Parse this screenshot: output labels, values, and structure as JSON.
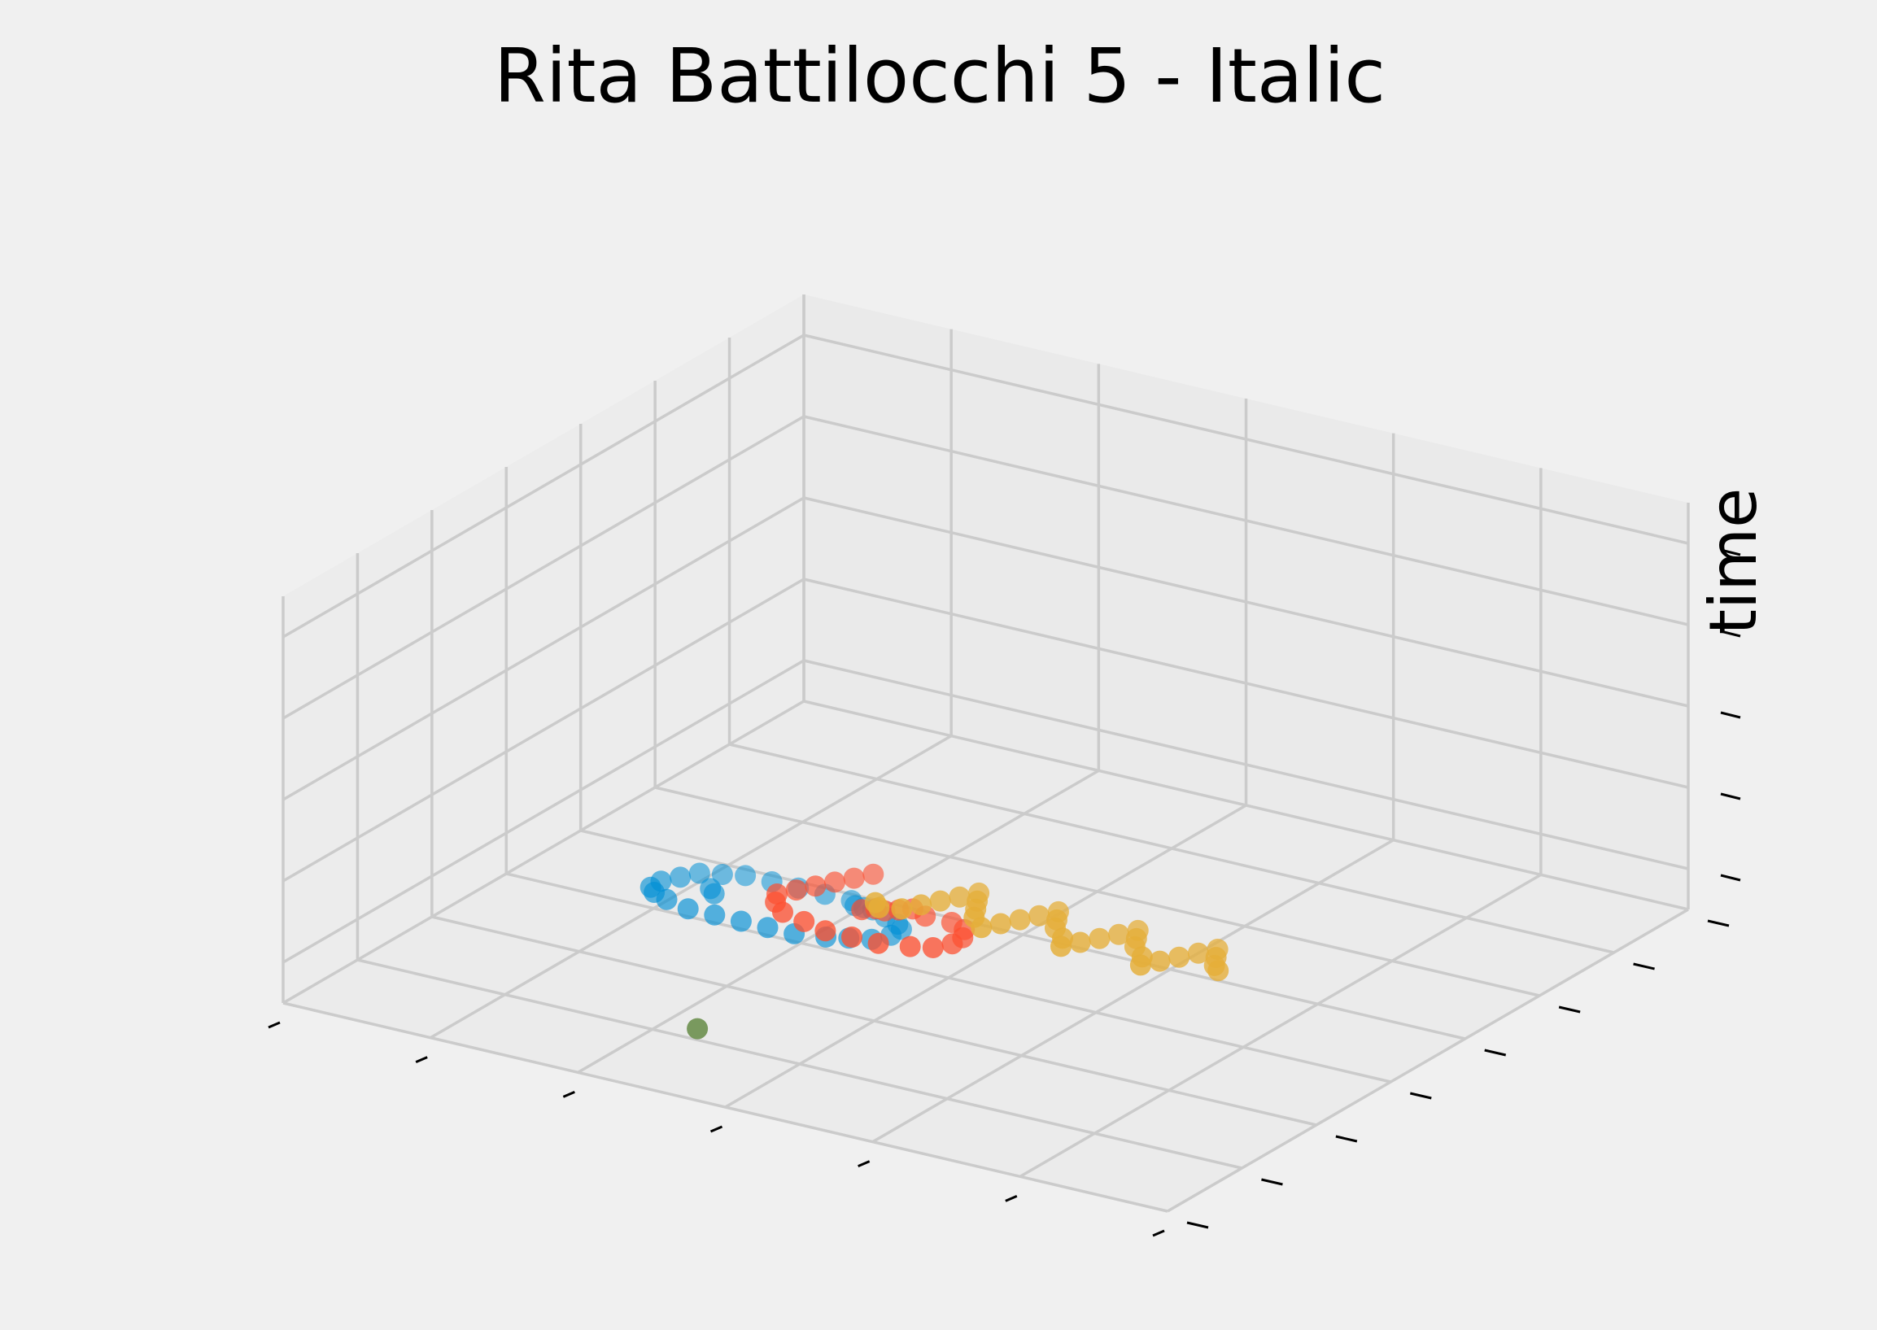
{
  "chart_data": {
    "type": "scatter",
    "title": "Rita Battilocchi 5 - Italic",
    "xlabel": "",
    "ylabel": "",
    "zlabel": "time",
    "projection": "3d",
    "grid": true,
    "legend": "none",
    "background_color": "#f0f0f0",
    "colors": {
      "stroke_1": "#008fd5",
      "stroke_2": "#fc4f30",
      "stroke_3": "#e5ae38",
      "stroke_4": "#6d904f"
    },
    "series": [
      {
        "color": "#008fd5",
        "points": [
          [
            0.18,
            0.4,
            0.08
          ],
          [
            0.18,
            0.42,
            0.08
          ],
          [
            0.19,
            0.44,
            0.08
          ],
          [
            0.2,
            0.46,
            0.08
          ],
          [
            0.22,
            0.47,
            0.08
          ],
          [
            0.24,
            0.48,
            0.08
          ],
          [
            0.27,
            0.48,
            0.08
          ],
          [
            0.3,
            0.48,
            0.08
          ],
          [
            0.33,
            0.48,
            0.08
          ],
          [
            0.36,
            0.48,
            0.08
          ],
          [
            0.39,
            0.47,
            0.08
          ],
          [
            0.41,
            0.46,
            0.08
          ],
          [
            0.43,
            0.45,
            0.08
          ],
          [
            0.44,
            0.44,
            0.08
          ],
          [
            0.44,
            0.42,
            0.08
          ],
          [
            0.43,
            0.4,
            0.08
          ],
          [
            0.41,
            0.39,
            0.08
          ],
          [
            0.39,
            0.38,
            0.08
          ],
          [
            0.36,
            0.37,
            0.08
          ],
          [
            0.33,
            0.37,
            0.08
          ],
          [
            0.3,
            0.37,
            0.08
          ],
          [
            0.27,
            0.37,
            0.08
          ],
          [
            0.24,
            0.37,
            0.08
          ],
          [
            0.21,
            0.38,
            0.08
          ],
          [
            0.19,
            0.39,
            0.08
          ],
          [
            0.23,
            0.43,
            0.08
          ],
          [
            0.24,
            0.42,
            0.08
          ],
          [
            0.37,
            0.47,
            0.08
          ],
          [
            0.38,
            0.47,
            0.08
          ]
        ]
      },
      {
        "color": "#fc4f30",
        "points": [
          [
            0.42,
            0.42,
            0.22
          ],
          [
            0.41,
            0.4,
            0.22
          ],
          [
            0.4,
            0.38,
            0.22
          ],
          [
            0.39,
            0.36,
            0.22
          ],
          [
            0.38,
            0.34,
            0.22
          ],
          [
            0.37,
            0.32,
            0.22
          ],
          [
            0.38,
            0.3,
            0.22
          ],
          [
            0.4,
            0.28,
            0.22
          ],
          [
            0.43,
            0.27,
            0.22
          ],
          [
            0.46,
            0.26,
            0.22
          ],
          [
            0.49,
            0.26,
            0.22
          ],
          [
            0.52,
            0.26,
            0.22
          ],
          [
            0.55,
            0.27,
            0.22
          ],
          [
            0.57,
            0.28,
            0.22
          ],
          [
            0.58,
            0.3,
            0.22
          ],
          [
            0.58,
            0.32,
            0.22
          ],
          [
            0.57,
            0.34,
            0.22
          ],
          [
            0.55,
            0.35,
            0.22
          ],
          [
            0.52,
            0.35,
            0.22
          ],
          [
            0.49,
            0.35,
            0.22
          ],
          [
            0.47,
            0.34,
            0.22
          ],
          [
            0.46,
            0.33,
            0.22
          ],
          [
            0.48,
            0.34,
            0.22
          ],
          [
            0.5,
            0.36,
            0.22
          ]
        ]
      },
      {
        "color": "#e5ae38",
        "points": [
          [
            0.54,
            0.22,
            0.36
          ],
          [
            0.55,
            0.21,
            0.36
          ],
          [
            0.57,
            0.22,
            0.36
          ],
          [
            0.58,
            0.24,
            0.36
          ],
          [
            0.59,
            0.26,
            0.36
          ],
          [
            0.6,
            0.28,
            0.36
          ],
          [
            0.61,
            0.3,
            0.36
          ],
          [
            0.62,
            0.28,
            0.36
          ],
          [
            0.63,
            0.26,
            0.36
          ],
          [
            0.64,
            0.24,
            0.36
          ],
          [
            0.66,
            0.22,
            0.36
          ],
          [
            0.67,
            0.24,
            0.36
          ],
          [
            0.68,
            0.26,
            0.36
          ],
          [
            0.69,
            0.28,
            0.36
          ],
          [
            0.7,
            0.3,
            0.36
          ],
          [
            0.71,
            0.28,
            0.36
          ],
          [
            0.72,
            0.26,
            0.36
          ],
          [
            0.74,
            0.24,
            0.36
          ],
          [
            0.75,
            0.22,
            0.36
          ],
          [
            0.76,
            0.24,
            0.36
          ],
          [
            0.77,
            0.26,
            0.36
          ],
          [
            0.78,
            0.28,
            0.36
          ],
          [
            0.79,
            0.3,
            0.36
          ],
          [
            0.8,
            0.28,
            0.36
          ],
          [
            0.81,
            0.26,
            0.36
          ],
          [
            0.83,
            0.24,
            0.36
          ],
          [
            0.84,
            0.22,
            0.36
          ],
          [
            0.85,
            0.24,
            0.36
          ],
          [
            0.86,
            0.26,
            0.36
          ],
          [
            0.87,
            0.28,
            0.36
          ],
          [
            0.88,
            0.3,
            0.36
          ],
          [
            0.89,
            0.28,
            0.36
          ],
          [
            0.9,
            0.26,
            0.36
          ],
          [
            0.91,
            0.25,
            0.36
          ]
        ]
      },
      {
        "color": "#6d904f",
        "points": [
          [
            0.38,
            0.15,
            0.02
          ]
        ]
      }
    ]
  }
}
